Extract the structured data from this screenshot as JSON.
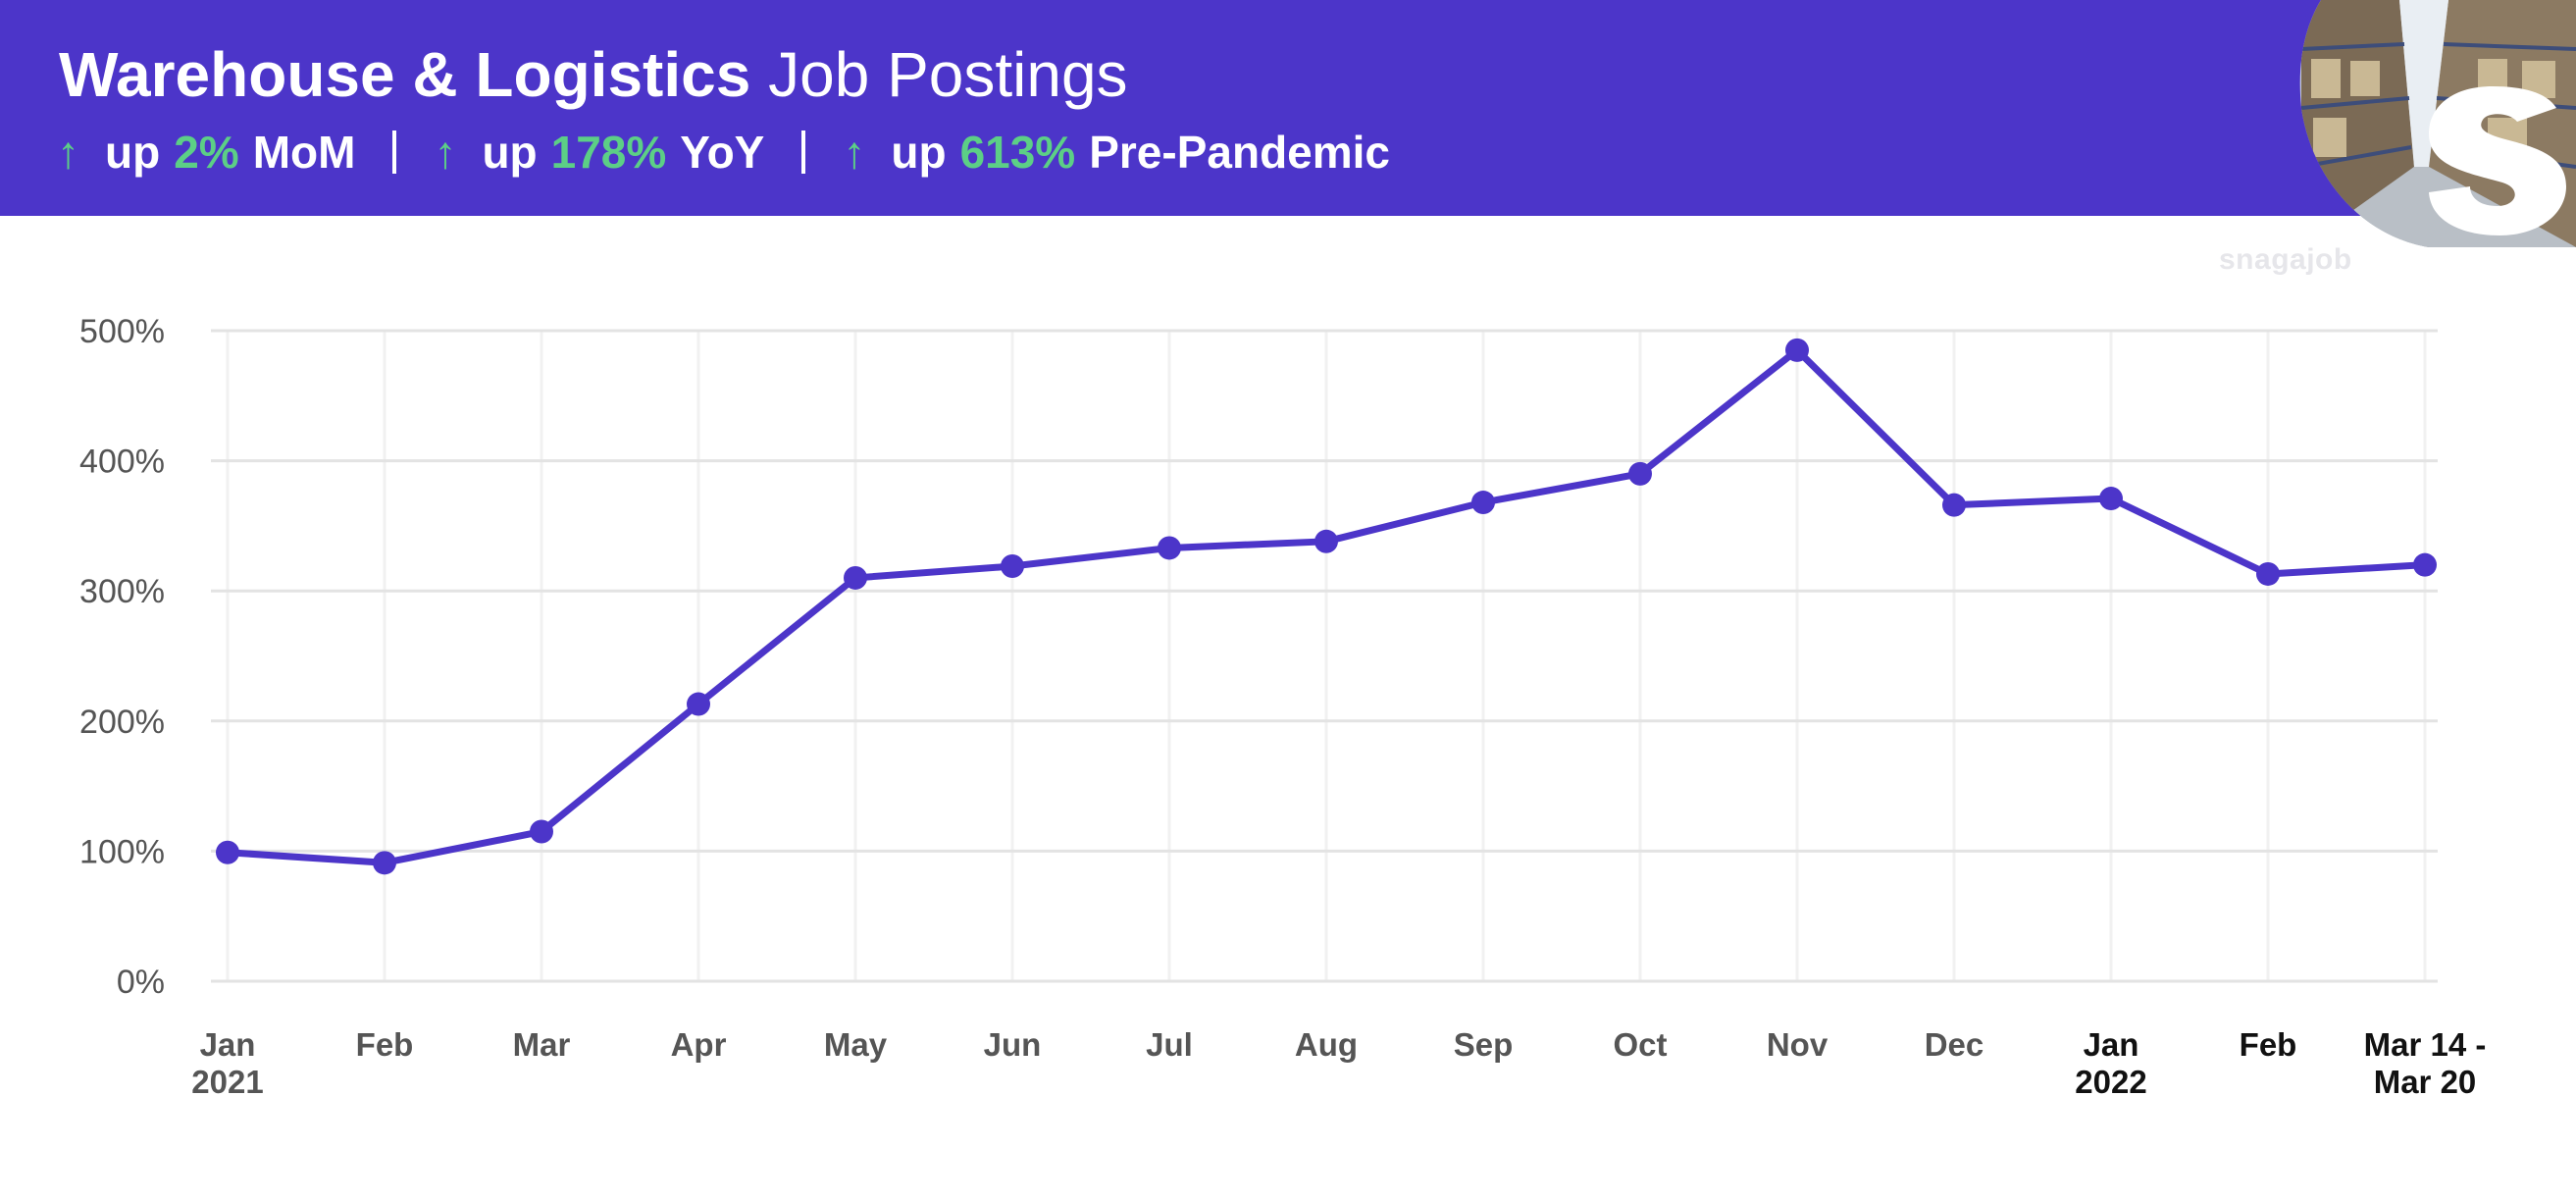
{
  "header": {
    "title_bold": "Warehouse & Logistics",
    "title_light": "Job Postings",
    "stats": [
      {
        "arrow": "↑",
        "prefix": "up",
        "value": "2%",
        "label": "MoM"
      },
      {
        "arrow": "↑",
        "prefix": "up",
        "value": "178%",
        "label": "YoY"
      },
      {
        "arrow": "↑",
        "prefix": "up",
        "value": "613%",
        "label": "Pre-Pandemic"
      }
    ]
  },
  "brand": {
    "watermark": "snagajob",
    "logo_letter": "S"
  },
  "colors": {
    "header_bg": "#4c35c9",
    "accent_green": "#5ccf86",
    "line": "#4c35c9",
    "grid": "#e3e3e3"
  },
  "chart_data": {
    "type": "line",
    "title": "",
    "xlabel": "",
    "ylabel": "",
    "ylim": [
      0,
      500
    ],
    "yticks": [
      "0%",
      "100%",
      "200%",
      "300%",
      "400%",
      "500%"
    ],
    "categories": [
      [
        "Jan",
        "2021"
      ],
      [
        "Feb",
        ""
      ],
      [
        "Mar",
        ""
      ],
      [
        "Apr",
        ""
      ],
      [
        "May",
        ""
      ],
      [
        "Jun",
        ""
      ],
      [
        "Jul",
        ""
      ],
      [
        "Aug",
        ""
      ],
      [
        "Sep",
        ""
      ],
      [
        "Oct",
        ""
      ],
      [
        "Nov",
        ""
      ],
      [
        "Dec",
        ""
      ],
      [
        "Jan",
        "2022"
      ],
      [
        "Feb",
        ""
      ],
      [
        "Mar 14 -",
        "Mar 20"
      ]
    ],
    "dark_label_from_index": 12,
    "series": [
      {
        "values": [
          99,
          91,
          115,
          213,
          310,
          319,
          333,
          338,
          368,
          390,
          485,
          366,
          371,
          313,
          320
        ]
      }
    ],
    "grid": true,
    "legend": "none"
  }
}
